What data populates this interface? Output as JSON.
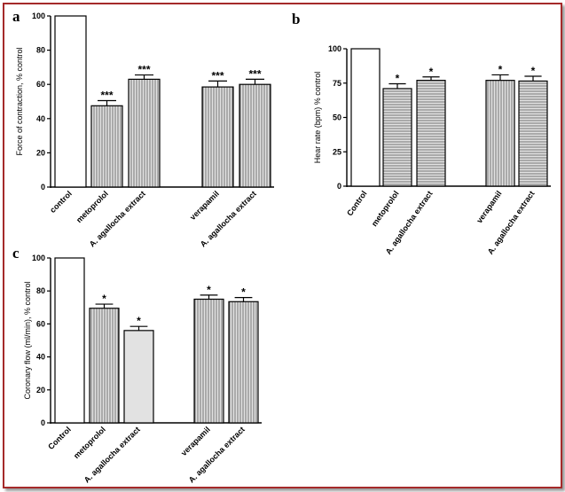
{
  "colors": {
    "frame": "#a52a2a",
    "bar_fill": "#e2e2e2",
    "bar_stroke": "#000000",
    "hatch": "#444444"
  },
  "chart_data": [
    {
      "type": "bar",
      "panel": "a",
      "ylabel": "Force of contraction, % control",
      "ylim": [
        0,
        100
      ],
      "yticks": [
        0,
        20,
        40,
        60,
        80,
        100
      ],
      "categories": [
        "control",
        "metoprolol",
        "A. agallocha extract",
        "verapamil",
        "A. agallocha extract"
      ],
      "values": [
        100,
        47.5,
        63,
        58.5,
        60
      ],
      "errors": [
        0,
        3,
        2.5,
        3.5,
        3
      ],
      "significance": [
        "",
        "***",
        "***",
        "***",
        "***"
      ],
      "patterns": [
        "open",
        "vertical",
        "vertical",
        "vertical",
        "vertical"
      ]
    },
    {
      "type": "bar",
      "panel": "b",
      "ylabel": "Hear rate (bpm) % control",
      "ylim": [
        0,
        100
      ],
      "yticks": [
        0,
        25,
        50,
        75,
        100
      ],
      "categories": [
        "Control",
        "metoprolol",
        "A. agallocha extract",
        "verapamil",
        "A. agallocha extract"
      ],
      "values": [
        100,
        71,
        77,
        77,
        76.5
      ],
      "errors": [
        0,
        3.5,
        2.5,
        4,
        3.5
      ],
      "significance": [
        "",
        "*",
        "*",
        "*",
        "*"
      ],
      "patterns": [
        "open",
        "horizontal",
        "horizontal",
        "vertical",
        "horizontal"
      ]
    },
    {
      "type": "bar",
      "panel": "c",
      "ylabel": "Coronary flow (ml/min), % control",
      "ylim": [
        0,
        100
      ],
      "yticks": [
        0,
        20,
        40,
        60,
        80,
        100
      ],
      "categories": [
        "Control",
        "metoprolol",
        "A. agallocha extract",
        "verapamil",
        "A. agallocha extract"
      ],
      "values": [
        100,
        69.5,
        56,
        75,
        73.5
      ],
      "errors": [
        0,
        2.5,
        2.5,
        2.5,
        2.5
      ],
      "significance": [
        "",
        "*",
        "*",
        "*",
        "*"
      ],
      "patterns": [
        "open",
        "vertical",
        "solid",
        "vertical",
        "vertical"
      ]
    }
  ]
}
